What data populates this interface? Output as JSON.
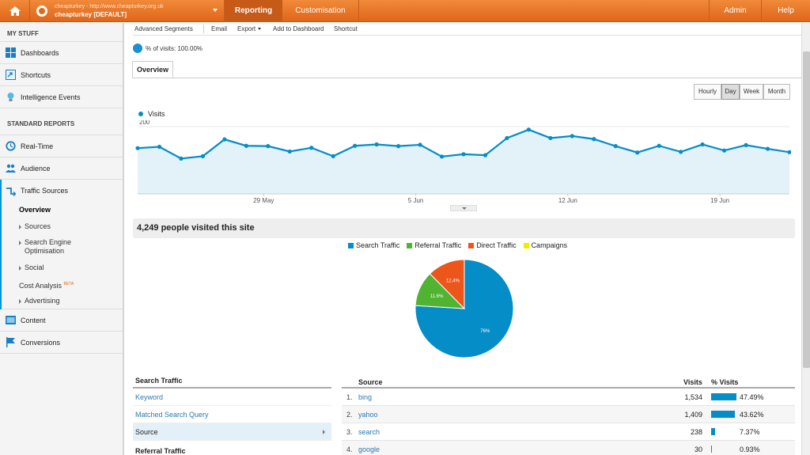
{
  "topbar": {
    "account_url": "cheapturkey - http://www.cheapturkey.org.uk",
    "account_name": "cheapturkey [DEFAULT]",
    "tabs": [
      "Reporting",
      "Customisation"
    ],
    "admin": "Admin",
    "help": "Help",
    "accent": "#e0661a"
  },
  "sidebar": {
    "my_stuff": "MY STUFF",
    "my_items": [
      {
        "label": "Dashboards",
        "icon": "dashboard-grid-icon"
      },
      {
        "label": "Shortcuts",
        "icon": "shortcut-icon"
      },
      {
        "label": "Intelligence Events",
        "icon": "lightbulb-icon"
      }
    ],
    "standard_reports": "STANDARD REPORTS",
    "report_items": [
      {
        "label": "Real-Time",
        "icon": "realtime-clock-icon"
      },
      {
        "label": "Audience",
        "icon": "audience-people-icon"
      },
      {
        "label": "Traffic Sources",
        "icon": "traffic-arrow-icon"
      }
    ],
    "traffic_sub": [
      "Overview",
      "Sources",
      "Search Engine Optimisation",
      "Social",
      "Cost Analysis",
      "Advertising"
    ],
    "beta": "BETA",
    "bottom_items": [
      {
        "label": "Content",
        "icon": "content-page-icon"
      },
      {
        "label": "Conversions",
        "icon": "flag-icon"
      }
    ]
  },
  "toolbar": {
    "advanced_segments": "Advanced Segments",
    "email": "Email",
    "export": "Export",
    "add_to_dashboard": "Add to Dashboard",
    "shortcut": "Shortcut"
  },
  "segment": "% of visits: 100.00%",
  "overview_tab": "Overview",
  "granularity": [
    "Hourly",
    "Day",
    "Week",
    "Month"
  ],
  "granularity_selected": "Day",
  "chart_data": [
    {
      "type": "area",
      "series": [
        {
          "name": "Visits",
          "color": "#058dc7",
          "values": [
            136,
            140,
            105,
            112,
            162,
            143,
            142,
            126,
            137,
            112,
            143,
            147,
            142,
            146,
            111,
            118,
            115,
            166,
            191,
            166,
            172,
            163,
            142,
            123,
            143,
            125,
            147,
            129,
            145,
            134,
            124
          ]
        }
      ],
      "x_ticks": [
        {
          "label": "29 May",
          "index": 5.8
        },
        {
          "label": "5 Jun",
          "index": 12.8
        },
        {
          "label": "12 Jun",
          "index": 19.8
        },
        {
          "label": "19 Jun",
          "index": 26.8
        }
      ],
      "y_ticks": [
        100,
        200
      ],
      "ylim": [
        0,
        200
      ],
      "grid": true
    },
    {
      "type": "pie",
      "series": [
        {
          "name": "Search Traffic",
          "value": 76,
          "label": "76%",
          "color": "#058dc7"
        },
        {
          "name": "Referral Traffic",
          "value": 11.6,
          "label": "11.6%",
          "color": "#50b432"
        },
        {
          "name": "Direct Traffic",
          "value": 12.4,
          "label": "12.4%",
          "color": "#ed561b"
        },
        {
          "name": "Campaigns",
          "value": 0,
          "label": "",
          "color": "#edef00"
        }
      ]
    }
  ],
  "visited_summary": "4,249 people visited this site",
  "left_table": {
    "header": "Search Traffic",
    "links": [
      "Keyword",
      "Matched Search Query",
      "Source"
    ],
    "selected": "Source",
    "next_header": "Referral Traffic"
  },
  "right_table": {
    "headers": {
      "source": "Source",
      "visits": "Visits",
      "pct": "% Visits"
    },
    "rows": [
      {
        "num": "1.",
        "source": "bing",
        "visits": "1,534",
        "pct": "47.49%",
        "share": 47.49
      },
      {
        "num": "2.",
        "source": "yahoo",
        "visits": "1,409",
        "pct": "43.62%",
        "share": 43.62
      },
      {
        "num": "3.",
        "source": "search",
        "visits": "238",
        "pct": "7.37%",
        "share": 7.37
      },
      {
        "num": "4.",
        "source": "google",
        "visits": "30",
        "pct": "0.93%",
        "share": 0.93
      }
    ]
  }
}
